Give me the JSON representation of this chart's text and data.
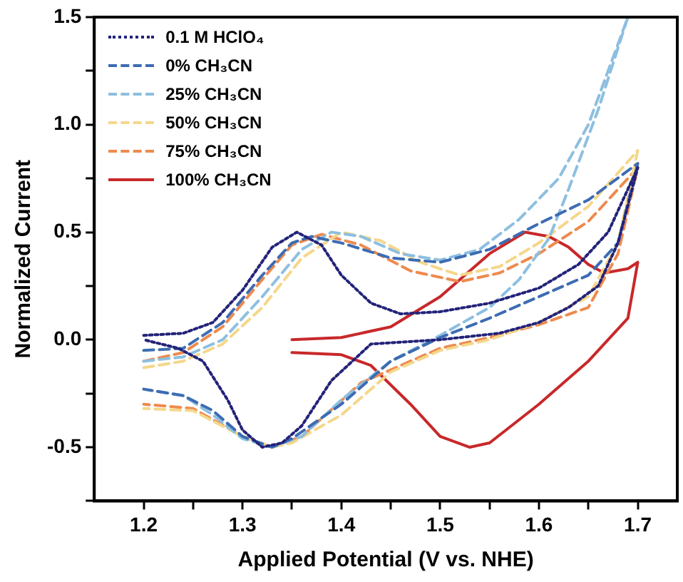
{
  "chart_data": {
    "type": "line",
    "xlabel": "Applied Potential (V vs. NHE)",
    "ylabel": "Normalized Current",
    "xlim": [
      1.15,
      1.74
    ],
    "ylim": [
      -0.75,
      1.5
    ],
    "xticks": [
      1.2,
      {
        "value": 1.25,
        "label": null
      },
      1.3,
      {
        "value": 1.35,
        "label": null
      },
      1.4,
      {
        "value": 1.45,
        "label": null
      },
      1.5,
      {
        "value": 1.55,
        "label": null
      },
      1.6,
      {
        "value": 1.65,
        "label": null
      },
      1.7
    ],
    "yticks": [
      {
        "value": -0.75,
        "label": null
      },
      -0.5,
      {
        "value": -0.25,
        "label": null
      },
      {
        "value": 0,
        "label": "0.0"
      },
      {
        "value": 0.25,
        "label": null
      },
      0.5,
      {
        "value": 0.75,
        "label": null
      },
      {
        "value": 1,
        "label": "1.0"
      },
      {
        "value": 1.25,
        "label": null
      },
      1.5
    ],
    "grid": false,
    "legend": "top left",
    "marker": "none",
    "series": [
      {
        "name": "0.1 M HClO₄",
        "color": "#23237a",
        "line_style": "dotted",
        "x": [
          1.2,
          1.24,
          1.27,
          1.3,
          1.33,
          1.355,
          1.38,
          1.4,
          1.43,
          1.46,
          1.5,
          1.55,
          1.6,
          1.64,
          1.67,
          1.7,
          1.68,
          1.66,
          1.63,
          1.6,
          1.56,
          1.5,
          1.43,
          1.39,
          1.36,
          1.34,
          1.32,
          1.3,
          1.285,
          1.26,
          1.235,
          1.2
        ],
        "values": [
          0.02,
          0.03,
          0.08,
          0.23,
          0.43,
          0.5,
          0.44,
          0.3,
          0.17,
          0.12,
          0.13,
          0.17,
          0.24,
          0.35,
          0.5,
          0.8,
          0.45,
          0.25,
          0.15,
          0.08,
          0.03,
          0.0,
          -0.02,
          -0.19,
          -0.4,
          -0.48,
          -0.5,
          -0.42,
          -0.28,
          -0.1,
          -0.04,
          0.0
        ]
      },
      {
        "name": "0% CH₃CN",
        "color": "#3d6cb3",
        "line_style": "dashed",
        "x": [
          1.2,
          1.24,
          1.28,
          1.32,
          1.35,
          1.37,
          1.4,
          1.45,
          1.5,
          1.55,
          1.6,
          1.65,
          1.7,
          1.68,
          1.65,
          1.6,
          1.55,
          1.5,
          1.45,
          1.4,
          1.35,
          1.33,
          1.3,
          1.27,
          1.24,
          1.2
        ],
        "values": [
          -0.05,
          -0.04,
          0.08,
          0.3,
          0.45,
          0.48,
          0.45,
          0.38,
          0.36,
          0.42,
          0.54,
          0.65,
          0.82,
          0.45,
          0.3,
          0.2,
          0.1,
          0.01,
          -0.1,
          -0.3,
          -0.46,
          -0.5,
          -0.45,
          -0.33,
          -0.26,
          -0.23
        ]
      },
      {
        "name": "25% CH₃CN",
        "color": "#8dbfe0",
        "line_style": "dashed",
        "x": [
          1.2,
          1.24,
          1.28,
          1.32,
          1.36,
          1.39,
          1.42,
          1.46,
          1.5,
          1.54,
          1.58,
          1.62,
          1.65,
          1.69,
          1.66,
          1.63,
          1.61,
          1.58,
          1.55,
          1.5,
          1.45,
          1.4,
          1.36,
          1.33,
          1.3,
          1.27,
          1.24,
          1.2
        ],
        "values": [
          -0.1,
          -0.08,
          0.0,
          0.2,
          0.42,
          0.5,
          0.48,
          0.4,
          0.37,
          0.42,
          0.56,
          0.75,
          1.0,
          1.5,
          1.07,
          0.7,
          0.47,
          0.28,
          0.15,
          0.02,
          -0.1,
          -0.28,
          -0.45,
          -0.5,
          -0.46,
          -0.35,
          -0.26,
          -0.23
        ]
      },
      {
        "name": "50% CH₃CN",
        "color": "#f5d78a",
        "line_style": "dashed",
        "x": [
          1.2,
          1.24,
          1.28,
          1.32,
          1.36,
          1.4,
          1.44,
          1.48,
          1.52,
          1.56,
          1.6,
          1.65,
          1.7,
          1.68,
          1.65,
          1.6,
          1.55,
          1.5,
          1.45,
          1.4,
          1.35,
          1.33,
          1.3,
          1.25,
          1.2
        ],
        "values": [
          -0.13,
          -0.1,
          -0.02,
          0.15,
          0.38,
          0.5,
          0.46,
          0.36,
          0.3,
          0.34,
          0.45,
          0.62,
          0.88,
          0.45,
          0.2,
          0.08,
          0.0,
          -0.05,
          -0.15,
          -0.35,
          -0.48,
          -0.5,
          -0.45,
          -0.33,
          -0.32
        ]
      },
      {
        "name": "75% CH₃CN",
        "color": "#ee8a4e",
        "line_style": "dashed",
        "x": [
          1.2,
          1.24,
          1.28,
          1.32,
          1.35,
          1.38,
          1.42,
          1.47,
          1.52,
          1.56,
          1.6,
          1.65,
          1.7,
          1.68,
          1.65,
          1.6,
          1.55,
          1.5,
          1.42,
          1.36,
          1.33,
          1.3,
          1.25,
          1.2
        ],
        "values": [
          -0.1,
          -0.06,
          0.06,
          0.28,
          0.44,
          0.49,
          0.44,
          0.32,
          0.27,
          0.31,
          0.4,
          0.55,
          0.8,
          0.4,
          0.15,
          0.07,
          0.01,
          -0.04,
          -0.2,
          -0.45,
          -0.5,
          -0.45,
          -0.32,
          -0.3
        ]
      },
      {
        "name": "100% CH₃CN",
        "color": "#c8282a",
        "line_style": "solid",
        "x": [
          1.35,
          1.4,
          1.45,
          1.5,
          1.55,
          1.586,
          1.61,
          1.63,
          1.65,
          1.666,
          1.69,
          1.7,
          1.69,
          1.65,
          1.6,
          1.55,
          1.53,
          1.5,
          1.47,
          1.43,
          1.4,
          1.35
        ],
        "values": [
          0.0,
          0.01,
          0.06,
          0.2,
          0.4,
          0.5,
          0.48,
          0.43,
          0.35,
          0.31,
          0.33,
          0.36,
          0.1,
          -0.1,
          -0.3,
          -0.48,
          -0.5,
          -0.45,
          -0.3,
          -0.12,
          -0.07,
          -0.06
        ]
      }
    ]
  }
}
